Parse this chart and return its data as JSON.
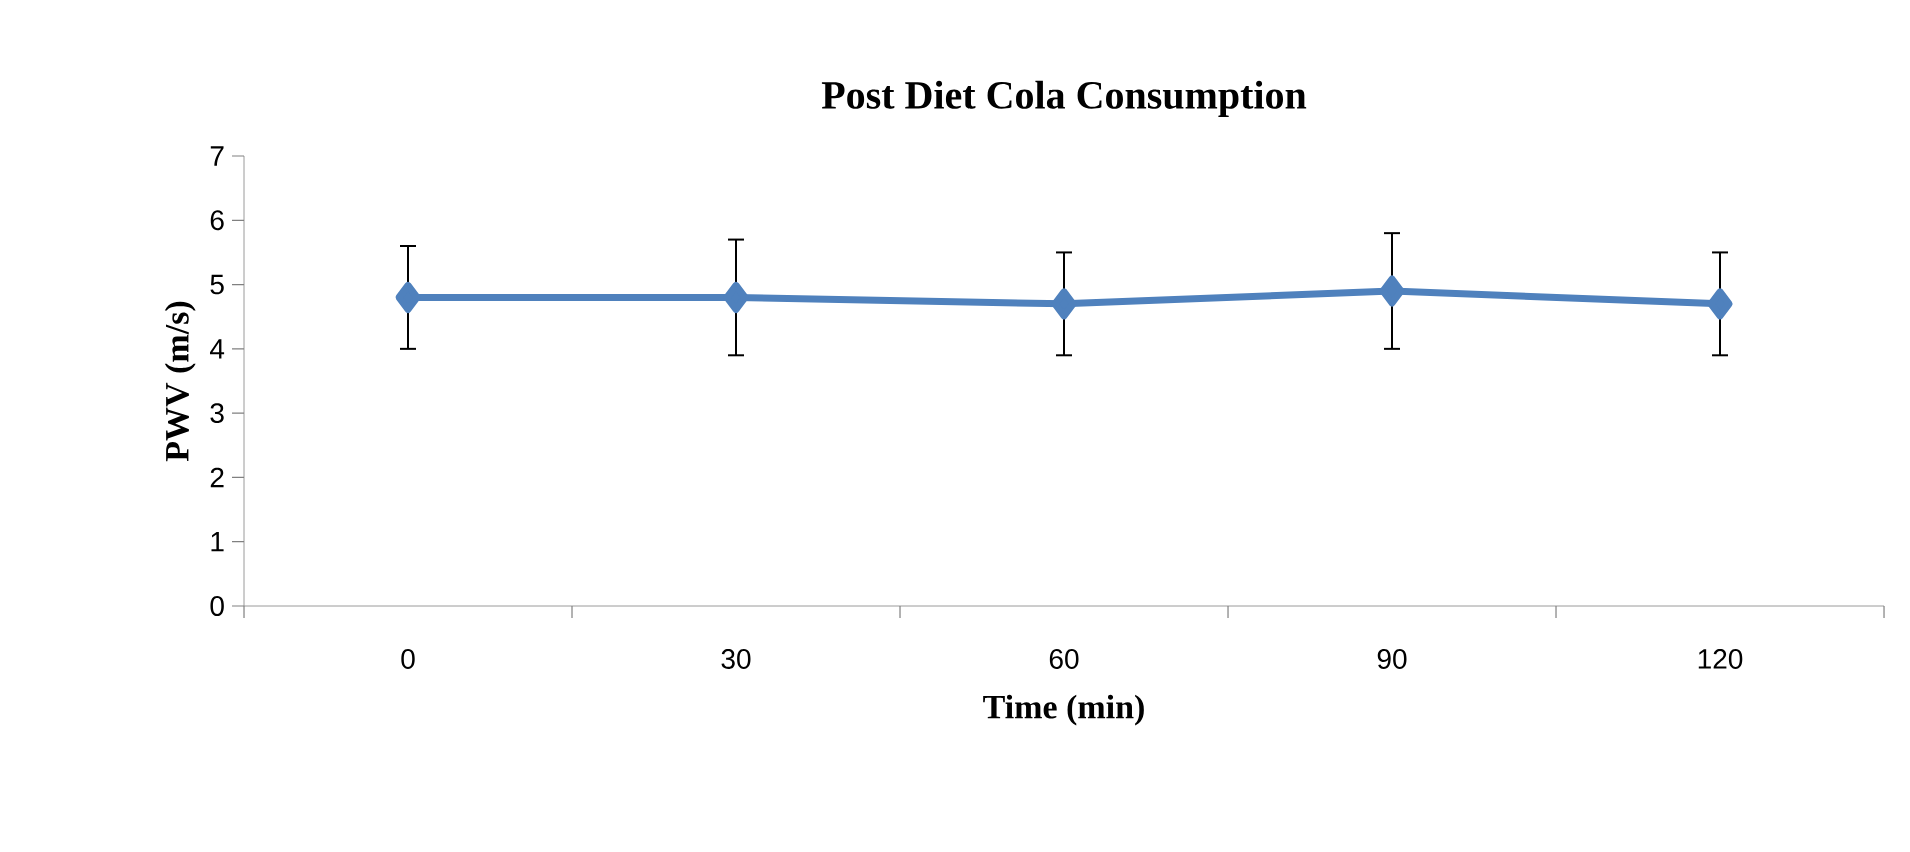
{
  "chart_data": {
    "type": "line",
    "title": "Post Diet Cola Consumption",
    "xlabel": "Time (min)",
    "ylabel": "PWV (m/s)",
    "categories": [
      "0",
      "30",
      "60",
      "90",
      "120"
    ],
    "series": [
      {
        "color": "#4f81bd",
        "values": [
          4.8,
          4.8,
          4.7,
          4.9,
          4.7
        ],
        "errors": [
          0.8,
          0.9,
          0.8,
          0.9,
          0.8
        ]
      }
    ],
    "ylim": [
      0,
      7
    ],
    "yticks": [
      0,
      1,
      2,
      3,
      4,
      5,
      6,
      7
    ],
    "marker": "diamond",
    "line_style": "solid"
  }
}
